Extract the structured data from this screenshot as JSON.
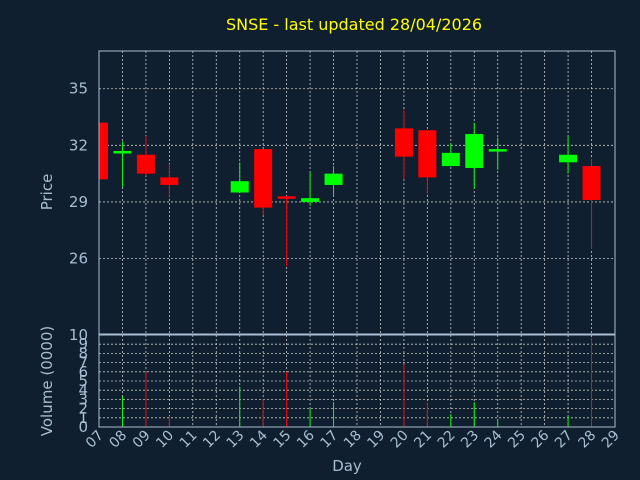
{
  "chart_data": {
    "type": "candlestick",
    "title": "SNSE - last updated 28/04/2026",
    "xlabel": "Day",
    "price_panel": {
      "ylabel": "Price",
      "ylim": [
        22,
        37
      ],
      "yticks": [
        26,
        29,
        32,
        35
      ],
      "grid": true
    },
    "volume_panel": {
      "ylabel": "Volume (0000)",
      "ylim": [
        0,
        10
      ],
      "yticks": [
        0,
        1,
        2,
        3,
        4,
        5,
        6,
        7,
        8,
        9,
        10
      ],
      "grid": true
    },
    "x_ticks": [
      "07",
      "08",
      "09",
      "10",
      "11",
      "12",
      "13",
      "14",
      "15",
      "16",
      "17",
      "18",
      "19",
      "20",
      "21",
      "22",
      "23",
      "24",
      "25",
      "26",
      "27",
      "28",
      "29"
    ],
    "candles": [
      {
        "day": "07",
        "open": 33.2,
        "high": 33.2,
        "low": 30.2,
        "close": 30.2,
        "volume": 0
      },
      {
        "day": "08",
        "open": 31.6,
        "high": 32.2,
        "low": 29.8,
        "close": 31.7,
        "volume": 3.3
      },
      {
        "day": "09",
        "open": 31.5,
        "high": 32.5,
        "low": 30.4,
        "close": 30.5,
        "volume": 6.0
      },
      {
        "day": "10",
        "open": 30.3,
        "high": 31.0,
        "low": 29.2,
        "close": 29.9,
        "volume": 1.2
      },
      {
        "day": "13",
        "open": 29.5,
        "high": 31.1,
        "low": 29.5,
        "close": 30.1,
        "volume": 4.4
      },
      {
        "day": "14",
        "open": 31.8,
        "high": 31.8,
        "low": 28.3,
        "close": 28.7,
        "volume": 3.0
      },
      {
        "day": "15",
        "open": 29.3,
        "high": 29.3,
        "low": 25.6,
        "close": 29.2,
        "volume": 6.0
      },
      {
        "day": "16",
        "open": 29.0,
        "high": 30.6,
        "low": 28.8,
        "close": 29.2,
        "volume": 2.0
      },
      {
        "day": "17",
        "open": 29.9,
        "high": 30.9,
        "low": 29.3,
        "close": 30.5,
        "volume": 2.7
      },
      {
        "day": "20",
        "open": 32.9,
        "high": 33.9,
        "low": 30.2,
        "close": 31.4,
        "volume": 6.8
      },
      {
        "day": "21",
        "open": 32.8,
        "high": 32.8,
        "low": 29.4,
        "close": 30.3,
        "volume": 2.7
      },
      {
        "day": "22",
        "open": 30.9,
        "high": 32.1,
        "low": 30.9,
        "close": 31.6,
        "volume": 1.4
      },
      {
        "day": "23",
        "open": 30.8,
        "high": 33.2,
        "low": 29.7,
        "close": 32.6,
        "volume": 2.7
      },
      {
        "day": "24",
        "open": 31.7,
        "high": 32.4,
        "low": 30.7,
        "close": 31.8,
        "volume": 0.7
      },
      {
        "day": "27",
        "open": 31.1,
        "high": 32.5,
        "low": 30.5,
        "close": 31.5,
        "volume": 1.2
      },
      {
        "day": "28",
        "open": 30.9,
        "high": 31.3,
        "low": 26.5,
        "close": 29.1,
        "volume": 9.7
      }
    ],
    "colors": {
      "up": "#00ff00",
      "down": "#ff0000",
      "background": "#0f1f2f",
      "title": "#ffff00",
      "axis_text": "#a8bed2"
    }
  }
}
